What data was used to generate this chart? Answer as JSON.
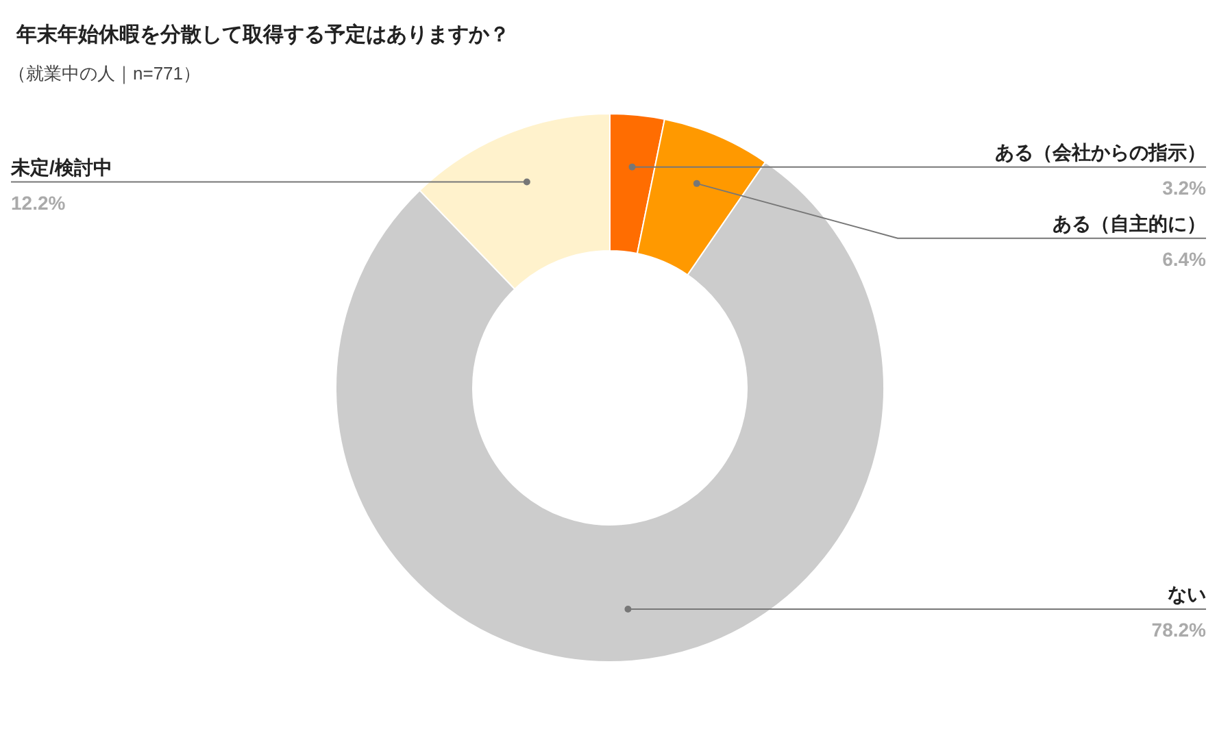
{
  "chart_data": {
    "type": "donut",
    "title": "年末年始休暇を分散して取得する予定はありますか？",
    "subtitle": "（就業中の人｜n=771）",
    "categories": [
      "ある（会社からの指示）",
      "ある（自主的に）",
      "ない",
      "未定/検討中"
    ],
    "values": [
      3.2,
      6.4,
      78.2,
      12.2
    ],
    "colors": [
      "#ff6d01",
      "#ff9900",
      "#cccccc",
      "#fff2cc"
    ],
    "value_labels": [
      "3.2%",
      "6.4%",
      "78.2%",
      "12.2%"
    ]
  }
}
